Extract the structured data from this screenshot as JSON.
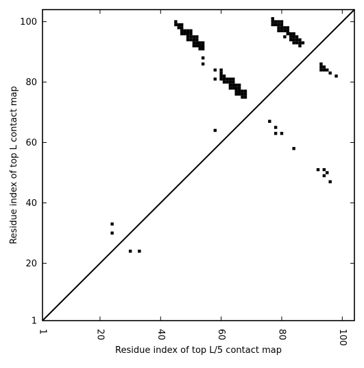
{
  "chart_data": {
    "type": "scatter",
    "title": "",
    "xlabel": "Residue index of top L/5 contact map",
    "ylabel": "Residue index of top L contact map",
    "xlim": [
      1,
      104
    ],
    "ylim": [
      1,
      104
    ],
    "xticks": [
      "1",
      "20",
      "40",
      "60",
      "80",
      "100"
    ],
    "yticks": [
      "1",
      "20",
      "40",
      "60",
      "80",
      "100"
    ],
    "grid": false,
    "diagonal_line": true,
    "marker": "square",
    "series": [
      {
        "name": "",
        "color": "#000000",
        "points": [
          [
            24,
            33
          ],
          [
            24,
            30
          ],
          [
            30,
            24
          ],
          [
            33,
            24
          ],
          [
            45,
            100
          ],
          [
            45,
            99
          ],
          [
            46,
            99
          ],
          [
            46,
            98
          ],
          [
            47,
            99
          ],
          [
            47,
            98
          ],
          [
            47,
            97
          ],
          [
            47,
            96
          ],
          [
            48,
            97
          ],
          [
            48,
            96
          ],
          [
            49,
            97
          ],
          [
            49,
            96
          ],
          [
            49,
            95
          ],
          [
            49,
            94
          ],
          [
            50,
            97
          ],
          [
            50,
            96
          ],
          [
            50,
            95
          ],
          [
            50,
            94
          ],
          [
            51,
            95
          ],
          [
            51,
            94
          ],
          [
            51,
            93
          ],
          [
            51,
            92
          ],
          [
            52,
            95
          ],
          [
            52,
            94
          ],
          [
            52,
            93
          ],
          [
            52,
            92
          ],
          [
            53,
            93
          ],
          [
            53,
            92
          ],
          [
            53,
            91
          ],
          [
            54,
            93
          ],
          [
            54,
            92
          ],
          [
            54,
            91
          ],
          [
            54,
            88
          ],
          [
            54,
            86
          ],
          [
            58,
            84
          ],
          [
            58,
            81
          ],
          [
            58,
            64
          ],
          [
            60,
            84
          ],
          [
            60,
            83
          ],
          [
            60,
            82
          ],
          [
            60,
            81
          ],
          [
            61,
            82
          ],
          [
            61,
            81
          ],
          [
            61,
            80
          ],
          [
            62,
            81
          ],
          [
            62,
            80
          ],
          [
            63,
            81
          ],
          [
            63,
            80
          ],
          [
            63,
            79
          ],
          [
            63,
            78
          ],
          [
            64,
            81
          ],
          [
            64,
            80
          ],
          [
            64,
            79
          ],
          [
            64,
            78
          ],
          [
            65,
            79
          ],
          [
            65,
            78
          ],
          [
            65,
            77
          ],
          [
            65,
            76
          ],
          [
            66,
            79
          ],
          [
            66,
            78
          ],
          [
            66,
            77
          ],
          [
            66,
            76
          ],
          [
            67,
            77
          ],
          [
            67,
            76
          ],
          [
            67,
            75
          ],
          [
            68,
            77
          ],
          [
            68,
            76
          ],
          [
            68,
            75
          ],
          [
            76,
            67
          ],
          [
            77,
            101
          ],
          [
            77,
            100
          ],
          [
            77,
            99
          ],
          [
            78,
            100
          ],
          [
            78,
            99
          ],
          [
            78,
            65
          ],
          [
            78,
            63
          ],
          [
            79,
            100
          ],
          [
            79,
            99
          ],
          [
            79,
            98
          ],
          [
            79,
            97
          ],
          [
            80,
            100
          ],
          [
            80,
            99
          ],
          [
            80,
            98
          ],
          [
            80,
            97
          ],
          [
            80,
            63
          ],
          [
            81,
            98
          ],
          [
            81,
            97
          ],
          [
            81,
            95
          ],
          [
            82,
            98
          ],
          [
            82,
            97
          ],
          [
            82,
            96
          ],
          [
            83,
            96
          ],
          [
            83,
            95
          ],
          [
            83,
            94
          ],
          [
            84,
            96
          ],
          [
            84,
            95
          ],
          [
            84,
            94
          ],
          [
            84,
            93
          ],
          [
            84,
            58
          ],
          [
            85,
            95
          ],
          [
            85,
            94
          ],
          [
            85,
            93
          ],
          [
            86,
            94
          ],
          [
            86,
            93
          ],
          [
            86,
            92
          ],
          [
            87,
            93
          ],
          [
            92,
            51
          ],
          [
            93,
            86
          ],
          [
            93,
            85
          ],
          [
            93,
            84
          ],
          [
            94,
            85
          ],
          [
            94,
            84
          ],
          [
            94,
            51
          ],
          [
            94,
            49
          ],
          [
            95,
            84
          ],
          [
            95,
            50
          ],
          [
            96,
            83
          ],
          [
            96,
            47
          ],
          [
            98,
            82
          ]
        ]
      }
    ]
  }
}
